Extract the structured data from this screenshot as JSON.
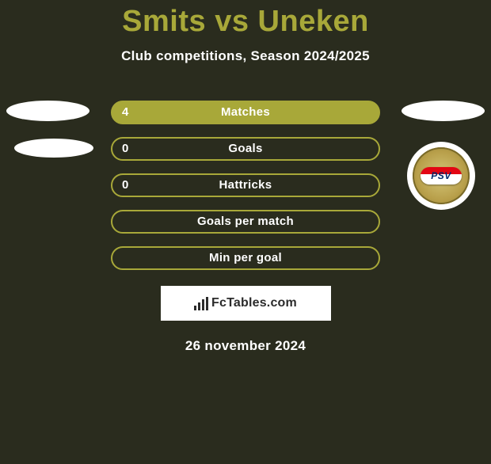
{
  "title": "Smits vs Uneken",
  "subtitle": "Club competitions, Season 2024/2025",
  "accent_color": "#a8a839",
  "background_color": "#2a2c1e",
  "text_color": "#ffffff",
  "stats": [
    {
      "label": "Matches",
      "value": "4",
      "filled": true
    },
    {
      "label": "Goals",
      "value": "0",
      "filled": false
    },
    {
      "label": "Hattricks",
      "value": "0",
      "filled": false
    },
    {
      "label": "Goals per match",
      "value": "",
      "filled": false
    },
    {
      "label": "Min per goal",
      "value": "",
      "filled": false
    }
  ],
  "badge": {
    "text": "PSV"
  },
  "footer": {
    "brand": "FcTables.com"
  },
  "date": "26 november 2024"
}
